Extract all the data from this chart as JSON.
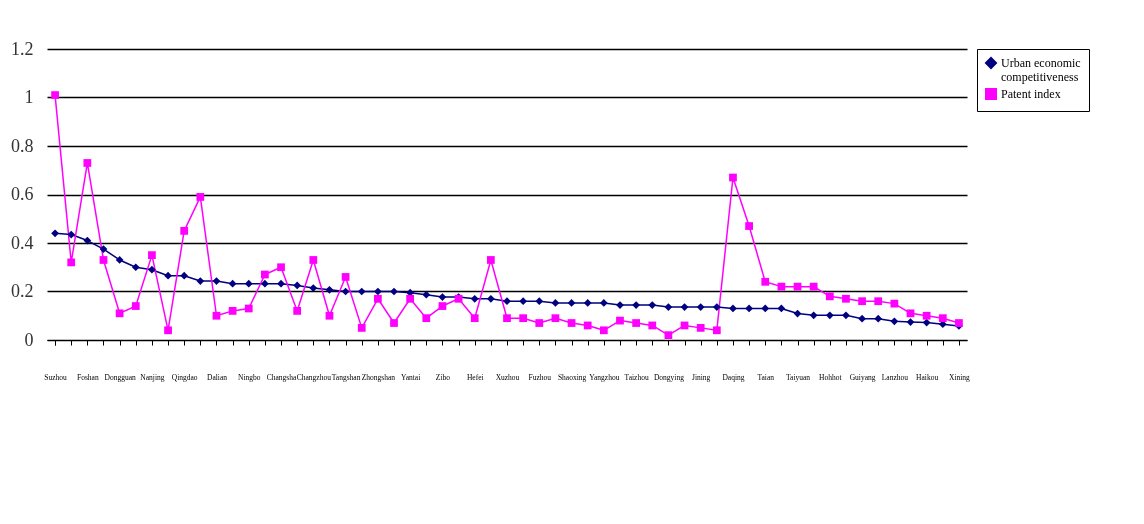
{
  "chart_data": {
    "type": "line",
    "categories": [
      "Suzhou",
      null,
      "Foshan",
      null,
      "Dongguan",
      null,
      "Nanjing",
      null,
      "Qingdao",
      null,
      "Dalian",
      null,
      "Ningbo",
      null,
      "Changsha",
      null,
      "Changzhou",
      null,
      "Tangshan",
      null,
      "Zhongshan",
      null,
      "Yantai",
      null,
      "Zibo",
      null,
      "Hefei",
      null,
      "Xuzhou",
      null,
      "Fuzhou",
      null,
      "Shaoxing",
      null,
      "Yangzhou",
      null,
      "Taizhou",
      null,
      "Dongying",
      null,
      "Jining",
      null,
      "Daqing",
      null,
      "Taian",
      null,
      "Taiyuan",
      null,
      "Hohhot",
      null,
      "Guiyang",
      null,
      "Lanzhou",
      null,
      "Haikou",
      null,
      "Xining"
    ],
    "series": [
      {
        "name": "Urban economic competitiveness",
        "color": "#000080",
        "marker": "diamond",
        "values": [
          0.44,
          0.435,
          0.41,
          0.375,
          0.33,
          0.3,
          0.29,
          0.265,
          0.265,
          0.243,
          0.243,
          0.232,
          0.232,
          0.232,
          0.232,
          0.225,
          0.214,
          0.207,
          0.2,
          0.2,
          0.2,
          0.2,
          0.195,
          0.187,
          0.177,
          0.177,
          0.17,
          0.17,
          0.16,
          0.16,
          0.16,
          0.153,
          0.153,
          0.153,
          0.153,
          0.144,
          0.144,
          0.144,
          0.136,
          0.136,
          0.136,
          0.136,
          0.13,
          0.13,
          0.13,
          0.13,
          0.109,
          0.102,
          0.102,
          0.102,
          0.088,
          0.088,
          0.077,
          0.074,
          0.072,
          0.065,
          0.058
        ]
      },
      {
        "name": "Patent index",
        "color": "#ff00ff",
        "marker": "square",
        "values": [
          1.01,
          0.32,
          0.73,
          0.33,
          0.11,
          0.14,
          0.35,
          0.04,
          0.45,
          0.59,
          0.1,
          0.12,
          0.13,
          0.27,
          0.3,
          0.12,
          0.33,
          0.1,
          0.26,
          0.05,
          0.17,
          0.07,
          0.17,
          0.09,
          0.14,
          0.17,
          0.09,
          0.33,
          0.09,
          0.09,
          0.07,
          0.09,
          0.07,
          0.06,
          0.04,
          0.08,
          0.07,
          0.06,
          0.02,
          0.06,
          0.05,
          0.04,
          0.67,
          0.47,
          0.24,
          0.22,
          0.22,
          0.22,
          0.18,
          0.17,
          0.16,
          0.16,
          0.15,
          0.11,
          0.1,
          0.09,
          0.07
        ]
      }
    ],
    "ylim": [
      0,
      1.2
    ],
    "yticks": [
      0,
      0.2,
      0.4,
      0.6,
      0.8,
      1,
      1.2
    ],
    "grid": "y",
    "legend": "right",
    "line_style": "solid"
  }
}
